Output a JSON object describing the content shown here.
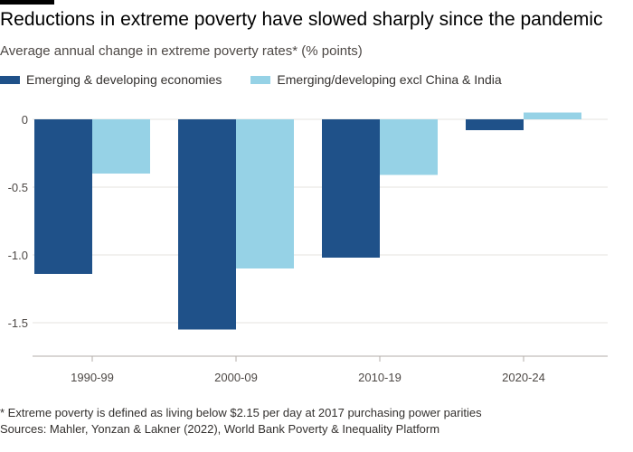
{
  "header": {
    "title": "Reductions in extreme poverty have slowed sharply since the pandemic",
    "subtitle": "Average annual change in extreme poverty rates* (% points)"
  },
  "footer": {
    "footnote": "* Extreme poverty is defined as living below $2.15 per day at 2017 purchasing power parities",
    "source": "Sources: Mahler, Yonzan & Lakner (2022), World Bank Poverty & Inequality Platform"
  },
  "chart_data": {
    "type": "bar",
    "title": "Reductions in extreme poverty have slowed sharply since the pandemic",
    "subtitle": "Average annual change in extreme poverty rates* (% points)",
    "categories": [
      "1990-99",
      "2000-09",
      "2010-19",
      "2020-24"
    ],
    "series": [
      {
        "name": "Emerging & developing economies",
        "color": "#1f5189",
        "values": [
          -1.14,
          -1.55,
          -1.02,
          -0.08
        ]
      },
      {
        "name": "Emerging/developing excl China & India",
        "color": "#96d2e6",
        "values": [
          -0.4,
          -1.1,
          -0.41,
          0.05
        ]
      }
    ],
    "yticks": [
      0,
      -0.5,
      -1.0,
      -1.5
    ],
    "ytick_labels": [
      "0",
      "-0.5",
      "-1.0",
      "-1.5"
    ],
    "ylim": [
      -1.75,
      0.1
    ],
    "grid": true,
    "legend_position": "top-left"
  }
}
